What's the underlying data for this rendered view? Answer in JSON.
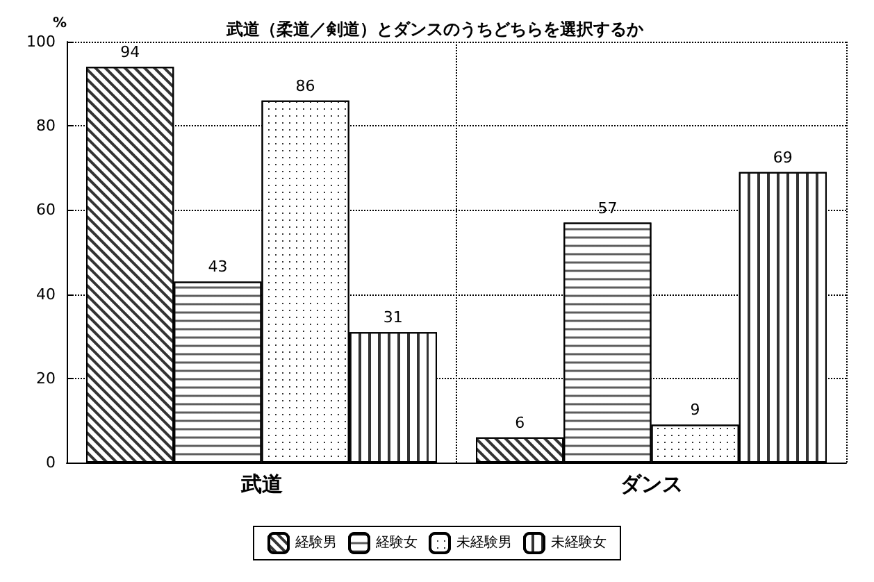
{
  "chart_data": {
    "type": "bar",
    "title": "武道（柔道／剣道）とダンスのうちどちらを選択するか",
    "ylabel": "%",
    "categories": [
      "武道",
      "ダンス"
    ],
    "series": [
      {
        "name": "経験男",
        "color": "#ffffff",
        "values": [
          94,
          6
        ]
      },
      {
        "name": "経験女",
        "color": "#ffffff",
        "values": [
          43,
          57
        ]
      },
      {
        "name": "未経験男",
        "color": "#ffffff",
        "values": [
          86,
          9
        ]
      },
      {
        "name": "未経験女",
        "color": "#ffffff",
        "values": [
          31,
          69
        ]
      }
    ],
    "ylim": [
      0,
      100
    ],
    "yticks": [
      0,
      20,
      40,
      60,
      80,
      100
    ],
    "grid": true,
    "legend": "bottom",
    "data_labels": true
  }
}
